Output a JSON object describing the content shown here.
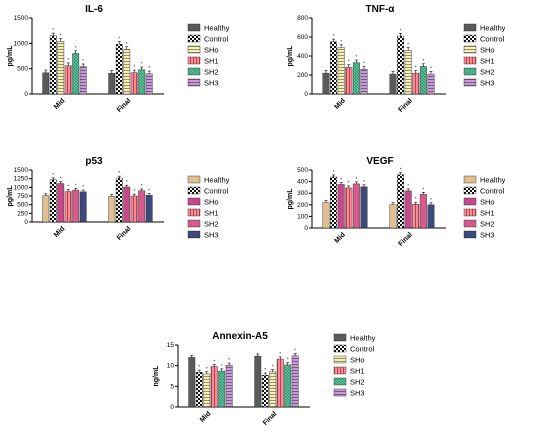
{
  "legend_labels": [
    "Healthy",
    "Control",
    "SHo",
    "SH1",
    "SH2",
    "SH3"
  ],
  "series_colors": [
    "#5a5a5a",
    "#1a1a1a",
    "#f5f0b8",
    "#ff7a8a",
    "#58c49a",
    "#c48ad8"
  ],
  "chart_data": [
    {
      "type": "bar",
      "title": "IL-6",
      "ylabel": "pg/mL",
      "categories": [
        "Mid",
        "Final"
      ],
      "ylim": [
        0,
        1500
      ],
      "yticks": [
        0,
        500,
        1000,
        1500
      ],
      "series": [
        {
          "name": "Healthy",
          "values": [
            420,
            410
          ]
        },
        {
          "name": "Control",
          "values": [
            1150,
            980
          ]
        },
        {
          "name": "SHo",
          "values": [
            1040,
            880
          ]
        },
        {
          "name": "SH1",
          "values": [
            560,
            420
          ]
        },
        {
          "name": "SH2",
          "values": [
            800,
            480
          ]
        },
        {
          "name": "SH3",
          "values": [
            540,
            400
          ]
        }
      ]
    },
    {
      "type": "bar",
      "title": "TNF-α",
      "ylabel": "pg/mL",
      "categories": [
        "Mid",
        "Final"
      ],
      "ylim": [
        0,
        800
      ],
      "yticks": [
        0,
        200,
        400,
        600,
        800
      ],
      "series": [
        {
          "name": "Healthy",
          "values": [
            220,
            210
          ]
        },
        {
          "name": "Control",
          "values": [
            550,
            610
          ]
        },
        {
          "name": "SHo",
          "values": [
            490,
            460
          ]
        },
        {
          "name": "SH1",
          "values": [
            280,
            220
          ]
        },
        {
          "name": "SH2",
          "values": [
            330,
            290
          ]
        },
        {
          "name": "SH3",
          "values": [
            260,
            210
          ]
        }
      ]
    },
    {
      "type": "bar",
      "title": "p53",
      "ylabel": "pg/mL",
      "categories": [
        "Mid",
        "Final"
      ],
      "ylim": [
        0,
        1500
      ],
      "yticks": [
        0,
        250,
        500,
        750,
        1000,
        1250,
        1500
      ],
      "series": [
        {
          "name": "Healthy",
          "values": [
            760,
            740
          ]
        },
        {
          "name": "Control",
          "values": [
            1220,
            1270
          ]
        },
        {
          "name": "SHo",
          "values": [
            1110,
            1010
          ]
        },
        {
          "name": "SH1",
          "values": [
            880,
            750
          ]
        },
        {
          "name": "SH2",
          "values": [
            920,
            900
          ]
        },
        {
          "name": "SH3",
          "values": [
            870,
            770
          ]
        }
      ]
    },
    {
      "type": "bar",
      "title": "VEGF",
      "ylabel": "pg/mL",
      "categories": [
        "Mid",
        "Final"
      ],
      "ylim": [
        0,
        500
      ],
      "yticks": [
        0,
        100,
        200,
        300,
        400,
        500
      ],
      "series": [
        {
          "name": "Healthy",
          "values": [
            220,
            200
          ]
        },
        {
          "name": "Control",
          "values": [
            440,
            460
          ]
        },
        {
          "name": "SHo",
          "values": [
            375,
            320
          ]
        },
        {
          "name": "SH1",
          "values": [
            345,
            205
          ]
        },
        {
          "name": "SH2",
          "values": [
            380,
            290
          ]
        },
        {
          "name": "SH3",
          "values": [
            355,
            200
          ]
        }
      ]
    },
    {
      "type": "bar",
      "title": "Annexin-A5",
      "ylabel": "ng/mL",
      "categories": [
        "Mid",
        "Final"
      ],
      "ylim": [
        0,
        15
      ],
      "yticks": [
        0,
        5,
        10,
        15
      ],
      "series": [
        {
          "name": "Healthy",
          "values": [
            12.0,
            12.3
          ]
        },
        {
          "name": "Control",
          "values": [
            8.4,
            7.7
          ]
        },
        {
          "name": "SHo",
          "values": [
            8.0,
            8.5
          ]
        },
        {
          "name": "SH1",
          "values": [
            9.8,
            11.6
          ]
        },
        {
          "name": "SH2",
          "values": [
            8.7,
            10.2
          ]
        },
        {
          "name": "SH3",
          "values": [
            10.1,
            12.4
          ]
        }
      ]
    }
  ]
}
